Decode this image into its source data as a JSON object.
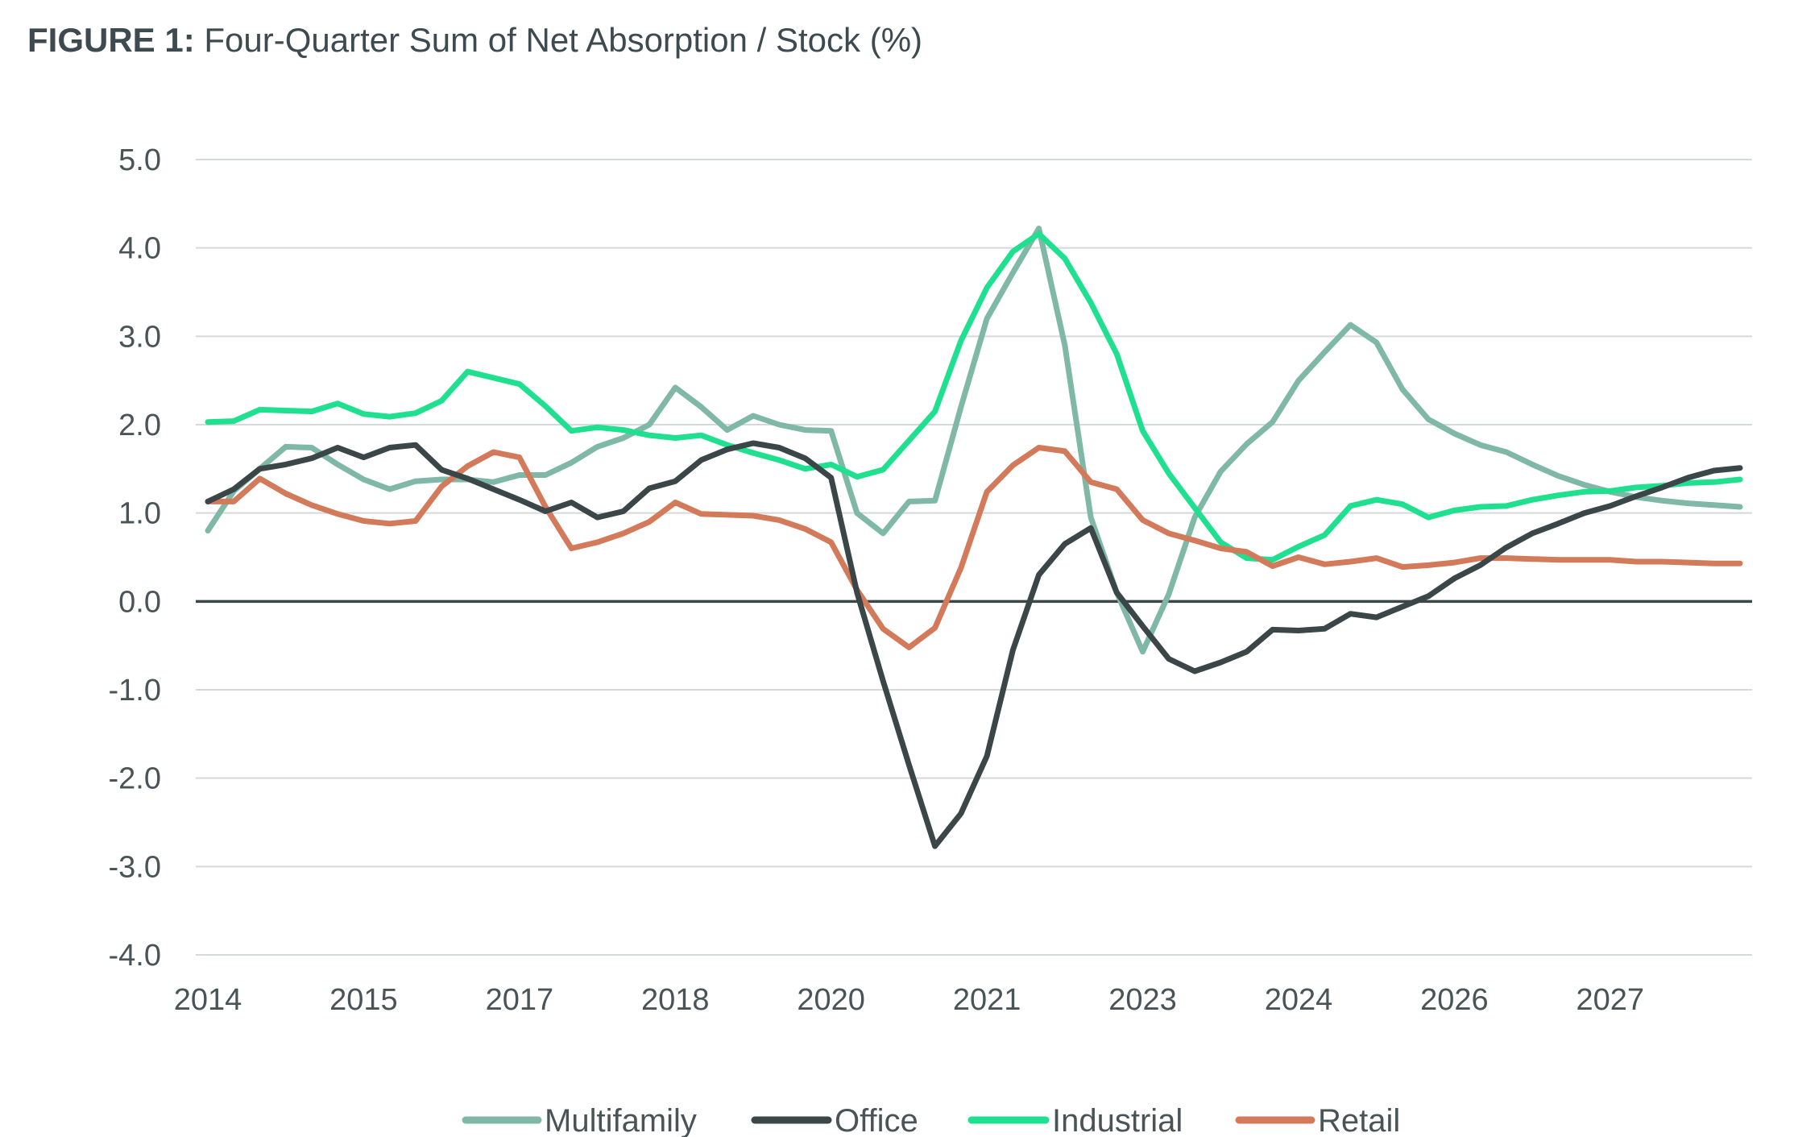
{
  "title": {
    "figure_label": "FIGURE 1:",
    "text": "Four-Quarter Sum of Net Absorption / Stock (%)"
  },
  "chart_data": {
    "type": "line",
    "title": "FIGURE 1: Four-Quarter Sum of Net Absorption / Stock (%)",
    "xlabel": "",
    "ylabel": "",
    "ylim": [
      -4.0,
      5.0
    ],
    "y_ticks": [
      "5.0",
      "4.0",
      "3.0",
      "2.0",
      "1.0",
      "0.0",
      "-1.0",
      "-2.0",
      "-3.0",
      "-4.0"
    ],
    "y_tick_values": [
      5,
      4,
      3,
      2,
      1,
      0,
      -1,
      -2,
      -3,
      -4
    ],
    "x_tick_labels": [
      "2014",
      "2015",
      "2017",
      "2018",
      "2020",
      "2021",
      "2023",
      "2024",
      "2026",
      "2027"
    ],
    "x_tick_indices": [
      0,
      6,
      12,
      18,
      24,
      30,
      36,
      42,
      48,
      54
    ],
    "n_points": 60,
    "grid": true,
    "legend_position": "bottom-center",
    "series": [
      {
        "name": "Multifamily",
        "color": "#7fb8a6",
        "values": [
          0.8,
          1.25,
          1.5,
          1.75,
          1.74,
          1.55,
          1.38,
          1.27,
          1.36,
          1.38,
          1.38,
          1.35,
          1.43,
          1.43,
          1.57,
          1.75,
          1.85,
          2.0,
          2.42,
          2.2,
          1.94,
          2.1,
          2.0,
          1.94,
          1.93,
          1.0,
          0.77,
          1.13,
          1.14,
          2.2,
          3.2,
          3.72,
          4.22,
          2.9,
          0.95,
          0.1,
          -0.57,
          0.08,
          0.95,
          1.47,
          1.78,
          2.03,
          2.5,
          2.82,
          3.13,
          2.93,
          2.4,
          2.06,
          1.9,
          1.77,
          1.69,
          1.55,
          1.42,
          1.32,
          1.24,
          1.18,
          1.14,
          1.11,
          1.09,
          1.07
        ]
      },
      {
        "name": "Office",
        "color": "#3b4648",
        "values": [
          1.13,
          1.27,
          1.5,
          1.55,
          1.62,
          1.74,
          1.63,
          1.74,
          1.77,
          1.49,
          1.39,
          1.27,
          1.15,
          1.02,
          1.12,
          0.95,
          1.02,
          1.28,
          1.36,
          1.6,
          1.72,
          1.79,
          1.74,
          1.62,
          1.4,
          0.1,
          -0.9,
          -1.85,
          -2.77,
          -2.4,
          -1.75,
          -0.55,
          0.3,
          0.65,
          0.83,
          0.1,
          -0.28,
          -0.65,
          -0.79,
          -0.69,
          -0.57,
          -0.32,
          -0.33,
          -0.31,
          -0.14,
          -0.18,
          -0.06,
          0.06,
          0.26,
          0.41,
          0.61,
          0.77,
          0.88,
          1.0,
          1.08,
          1.19,
          1.29,
          1.4,
          1.48,
          1.51
        ]
      },
      {
        "name": "Industrial",
        "color": "#1fe08f",
        "values": [
          2.03,
          2.04,
          2.17,
          2.16,
          2.15,
          2.24,
          2.12,
          2.09,
          2.13,
          2.27,
          2.6,
          2.53,
          2.46,
          2.21,
          1.93,
          1.97,
          1.94,
          1.88,
          1.85,
          1.88,
          1.77,
          1.68,
          1.6,
          1.5,
          1.55,
          1.41,
          1.49,
          1.82,
          2.15,
          2.95,
          3.55,
          3.96,
          4.16,
          3.88,
          3.38,
          2.8,
          1.93,
          1.45,
          1.06,
          0.67,
          0.49,
          0.47,
          0.62,
          0.75,
          1.08,
          1.15,
          1.1,
          0.95,
          1.03,
          1.07,
          1.08,
          1.15,
          1.2,
          1.24,
          1.25,
          1.29,
          1.31,
          1.34,
          1.35,
          1.38
        ]
      },
      {
        "name": "Retail",
        "color": "#d27a5a",
        "values": [
          1.13,
          1.13,
          1.39,
          1.22,
          1.09,
          0.99,
          0.91,
          0.88,
          0.91,
          1.3,
          1.53,
          1.69,
          1.63,
          1.07,
          0.6,
          0.67,
          0.77,
          0.9,
          1.12,
          0.99,
          0.98,
          0.97,
          0.92,
          0.82,
          0.67,
          0.13,
          -0.31,
          -0.52,
          -0.3,
          0.38,
          1.24,
          1.54,
          1.74,
          1.7,
          1.35,
          1.27,
          0.92,
          0.77,
          0.69,
          0.6,
          0.56,
          0.4,
          0.5,
          0.42,
          0.45,
          0.49,
          0.39,
          0.41,
          0.44,
          0.49,
          0.49,
          0.48,
          0.47,
          0.47,
          0.47,
          0.45,
          0.45,
          0.44,
          0.43,
          0.43
        ]
      }
    ]
  }
}
